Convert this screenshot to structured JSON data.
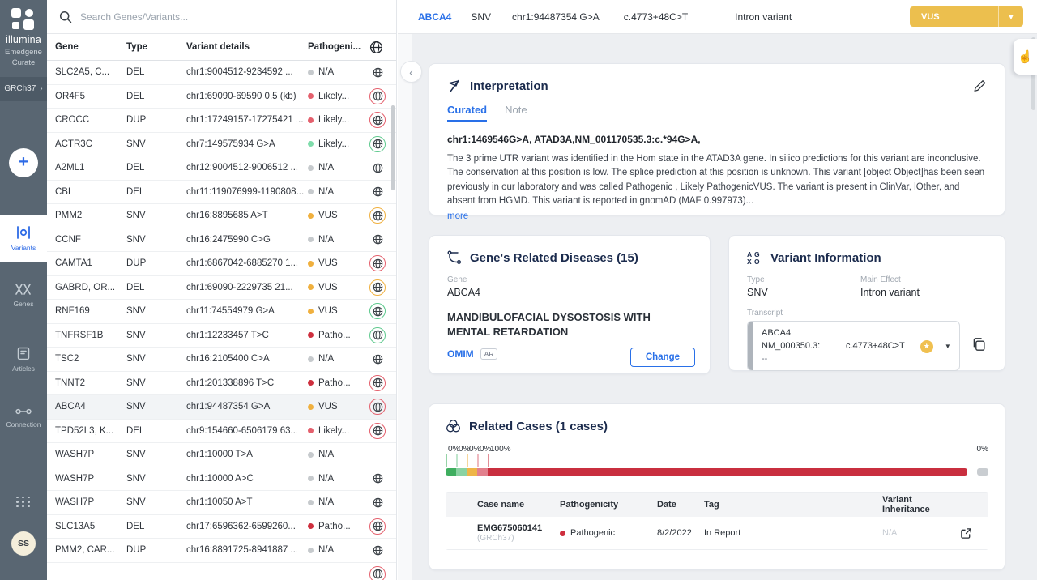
{
  "sidebar": {
    "brand": "illumina",
    "product_line1": "Emedgene",
    "product_line2": "Curate",
    "genome_build": "GRCh37",
    "nav": [
      {
        "label": "Variants"
      },
      {
        "label": "Genes"
      },
      {
        "label": "Articles"
      },
      {
        "label": "Connection"
      }
    ],
    "avatar_initials": "SS"
  },
  "search": {
    "placeholder": "Search Genes/Variants..."
  },
  "variants_table": {
    "columns": {
      "gene": "Gene",
      "type": "Type",
      "details": "Variant details",
      "pathogenicity": "Pathogeni..."
    },
    "rows": [
      {
        "gene": "SLC2A5, C...",
        "type": "DEL",
        "details": "chr1:9004512-9234592 ...",
        "path": "N/A",
        "path_color": "gray",
        "globe": "plain",
        "selected": false
      },
      {
        "gene": "OR4F5",
        "type": "DEL",
        "details": "chr1:69090-69590 0.5 (kb)",
        "path": "Likely...",
        "path_color": "pink",
        "globe": "red",
        "selected": false
      },
      {
        "gene": "CROCC",
        "type": "DUP",
        "details": "chr1:17249157-17275421 ...",
        "path": "Likely...",
        "path_color": "pink",
        "globe": "red",
        "selected": false
      },
      {
        "gene": "ACTR3C",
        "type": "SNV",
        "details": "chr7:149575934 G>A",
        "path": "Likely...",
        "path_color": "mint",
        "globe": "green",
        "selected": false
      },
      {
        "gene": "A2ML1",
        "type": "DEL",
        "details": "chr12:9004512-9006512 ...",
        "path": "N/A",
        "path_color": "gray",
        "globe": "plain",
        "selected": false
      },
      {
        "gene": "CBL",
        "type": "DEL",
        "details": "chr11:119076999-1190808...",
        "path": "N/A",
        "path_color": "gray",
        "globe": "plain",
        "selected": false
      },
      {
        "gene": "PMM2",
        "type": "SNV",
        "details": "chr16:8895685 A>T",
        "path": "VUS",
        "path_color": "orange",
        "globe": "orange",
        "selected": false
      },
      {
        "gene": "CCNF",
        "type": "SNV",
        "details": "chr16:2475990 C>G",
        "path": "N/A",
        "path_color": "gray",
        "globe": "plain",
        "selected": false
      },
      {
        "gene": "CAMTA1",
        "type": "DUP",
        "details": "chr1:6867042-6885270 1...",
        "path": "VUS",
        "path_color": "orange",
        "globe": "red",
        "selected": false
      },
      {
        "gene": "GABRD, OR...",
        "type": "DEL",
        "details": "chr1:69090-2229735 21...",
        "path": "VUS",
        "path_color": "orange",
        "globe": "orange",
        "selected": false
      },
      {
        "gene": "RNF169",
        "type": "SNV",
        "details": "chr11:74554979 G>A",
        "path": "VUS",
        "path_color": "orange",
        "globe": "green",
        "selected": false
      },
      {
        "gene": "TNFRSF1B",
        "type": "SNV",
        "details": "chr1:12233457 T>C",
        "path": "Patho...",
        "path_color": "red",
        "globe": "green",
        "selected": false
      },
      {
        "gene": "TSC2",
        "type": "SNV",
        "details": "chr16:2105400 C>A",
        "path": "N/A",
        "path_color": "gray",
        "globe": "plain",
        "selected": false
      },
      {
        "gene": "TNNT2",
        "type": "SNV",
        "details": "chr1:201338896 T>C",
        "path": "Patho...",
        "path_color": "red",
        "globe": "red",
        "selected": false
      },
      {
        "gene": "ABCA4",
        "type": "SNV",
        "details": "chr1:94487354 G>A",
        "path": "VUS",
        "path_color": "orange",
        "globe": "red",
        "selected": true
      },
      {
        "gene": "TPD52L3, K...",
        "type": "DEL",
        "details": "chr9:154660-6506179 63...",
        "path": "Likely...",
        "path_color": "pink",
        "globe": "red",
        "selected": false
      },
      {
        "gene": "WASH7P",
        "type": "SNV",
        "details": "chr1:10000 T>A",
        "path": "N/A",
        "path_color": "gray",
        "globe": "none",
        "selected": false
      },
      {
        "gene": "WASH7P",
        "type": "SNV",
        "details": "chr1:10000 A>C",
        "path": "N/A",
        "path_color": "gray",
        "globe": "plain",
        "selected": false
      },
      {
        "gene": "WASH7P",
        "type": "SNV",
        "details": "chr1:10050 A>T",
        "path": "N/A",
        "path_color": "gray",
        "globe": "plain",
        "selected": false
      },
      {
        "gene": "SLC13A5",
        "type": "DEL",
        "details": "chr17:6596362-6599260...",
        "path": "Patho...",
        "path_color": "red",
        "globe": "red",
        "selected": false
      },
      {
        "gene": "PMM2, CAR...",
        "type": "DUP",
        "details": "chr16:8891725-8941887 ...",
        "path": "N/A",
        "path_color": "gray",
        "globe": "plain",
        "selected": false
      },
      {
        "gene": "",
        "type": "",
        "details": "",
        "path": "",
        "path_color": "none",
        "globe": "red",
        "selected": false
      }
    ]
  },
  "topbar": {
    "gene": "ABCA4",
    "type": "SNV",
    "coords": "chr1:94487354 G>A",
    "cdna": "c.4773+48C>T",
    "effect": "Intron variant",
    "classification": "VUS"
  },
  "interpretation": {
    "title": "Interpretation",
    "tab_curated": "Curated",
    "tab_note": "Note",
    "headline": "chr1:1469546G>A, ATAD3A,NM_001170535.3:c.*94G>A,",
    "body": "The 3 prime UTR variant was identified in the Hom state in the ATAD3A gene. In silico predictions for this variant are inconclusive. The conservation at this position is low. The splice prediction at this position is unknown. This variant [object Object]has been seen previously in our laboratory and was called Pathogenic , Likely PathogenicVUS. The variant is present in ClinVar, lOther, and absent from HGMD. This variant is reported in gnomAD (MAF 0.997973)...",
    "more_label": "more"
  },
  "diseases": {
    "title": "Gene's Related Diseases (15)",
    "gene_label": "Gene",
    "gene": "ABCA4",
    "disease": "MANDIBULOFACIAL DYSOSTOSIS WITH MENTAL RETARDATION",
    "source_link": "OMIM",
    "inheritance_badge": "AR",
    "change_label": "Change"
  },
  "variant_info": {
    "title": "Variant Information",
    "type_label": "Type",
    "type": "SNV",
    "effect_label": "Main Effect",
    "effect": "Intron variant",
    "transcript_label": "Transcript",
    "transcript_gene": "ABCA4",
    "transcript_id": "NM_000350.3:",
    "transcript_change": "c.4773+48C>T",
    "transcript_note": "--",
    "star": "★"
  },
  "related_cases": {
    "title": "Related Cases (1 cases)",
    "bar_segments": [
      {
        "label": "0%",
        "color": "#3fae5f",
        "width": 13,
        "grow": false
      },
      {
        "label": "0%",
        "color": "#8ad2a2",
        "width": 13,
        "grow": false
      },
      {
        "label": "0%",
        "color": "#eeb548",
        "width": 13,
        "grow": false
      },
      {
        "label": "0%",
        "color": "#e2808d",
        "width": 13,
        "grow": false
      },
      {
        "label": "100%",
        "color": "#c92f3f",
        "width": 0,
        "grow": true
      }
    ],
    "bar_rest_label": "0%",
    "columns": [
      "Case name",
      "Pathogenicity",
      "Date",
      "Tag",
      "Variant Inheritance"
    ],
    "case": {
      "name": "EMG675060141",
      "build": "(GRCh37)",
      "pathogenicity": "Pathogenic",
      "date": "8/2/2022",
      "tag": "In Report",
      "inheritance": "N/A"
    }
  }
}
